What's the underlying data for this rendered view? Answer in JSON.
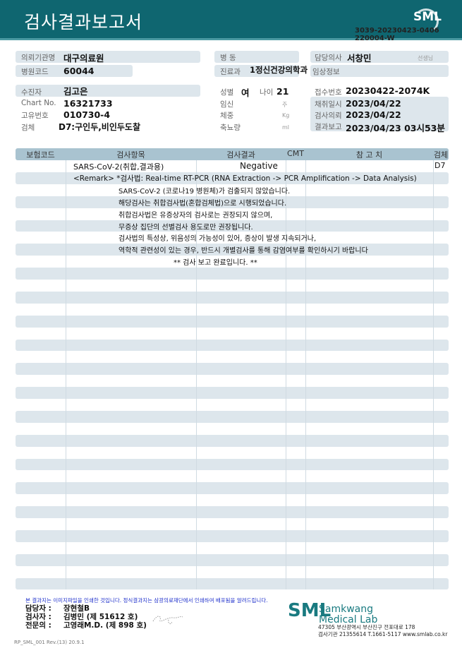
{
  "header": {
    "title": "검사결과보고서",
    "logo": "SML",
    "doc_no_1": "3039-20230423-0406",
    "doc_no_2": "220004-W"
  },
  "info": {
    "inst_label": "의뢰기관명",
    "inst": "대구의료원",
    "code_label": "병원코드",
    "code": "60044",
    "ward_label": "병 동",
    "ward": "",
    "dept_label": "진료과",
    "dept": "1정신건강의학과",
    "doctor_label": "담당의사",
    "doctor": "서창민",
    "doctor_suffix": "선생님",
    "clinical_label": "임상정보",
    "patient_label": "수진자",
    "patient": "김고은",
    "chart_label": "Chart No.",
    "chart": "16321733",
    "uid_label": "고유번호",
    "uid": "010730-4",
    "specimen_label": "검체",
    "specimen": "D7:구인두,비인두도찰",
    "sex_label": "성별",
    "sex": "여",
    "age_label": "나이",
    "age": "21",
    "preg_label": "임신",
    "preg_unit": "주",
    "weight_label": "체중",
    "weight_unit": "Kg",
    "urine_label": "축뇨량",
    "urine_unit": "ml",
    "recv_label": "접수번호",
    "recv": "20230422-2074K",
    "collect_label": "채취일시",
    "collect": "2023/04/22",
    "request_label": "검사의뢰",
    "request": "2023/04/22",
    "report_label": "결과보고",
    "report": "2023/04/23 03시53분"
  },
  "table": {
    "headers": [
      "보험코드",
      "검사항목",
      "검사결과",
      "CMT",
      "참 고 치",
      "검체"
    ],
    "test_name": "SARS-CoV-2(취합,결과용)",
    "result": "Negative",
    "specimen": "D7",
    "remark": "<Remark> *검사법: Real-time RT-PCR (RNA Extraction -> PCR Amplification -> Data Analysis)",
    "lines": [
      "SARS-CoV-2 (코로나19 병원체)가 검출되지 않았습니다.",
      "해당검사는 취합검사법(혼합검체법)으로 시행되었습니다.",
      "취합검사법은 유증상자의 검사로는 권장되지 않으며,",
      "무증상 집단의 선별검사 용도로만 권장됩니다.",
      "검사법의 특성상, 위음성의 가능성이 있어, 증상이 발생 지속되거나,",
      "역학적 관련성이 있는 경우, 반드시 개별검사를 통해 감염여부를 확인하시기 바랍니다"
    ],
    "end": "** 검사 보고 완료입니다. **"
  },
  "footer": {
    "note": "본 결과지는 이미지파일을 인쇄한 것입니다. 정식결과지는 삼광의료재단에서 인쇄하여 배포됨을 알려드립니다.",
    "staff_label": "담당자 :",
    "staff": "장현철B",
    "tester_label": "검사자 :",
    "tester": "김병민 (제 51612 호)",
    "specialist_label": "전문의 :",
    "specialist": "고영래M.D. (제 898 호)",
    "lab_logo": "SML",
    "lab_name_1": "Samkwang",
    "lab_name_2": "Medical Lab",
    "address": "47305 부산광역시 부산진구 전포대로 178",
    "contact": "검사기관 21355614 T.1661-5117 www.smlab.co.kr",
    "revision": "RP_SML_001 Rev.(13) 20.9.1"
  }
}
